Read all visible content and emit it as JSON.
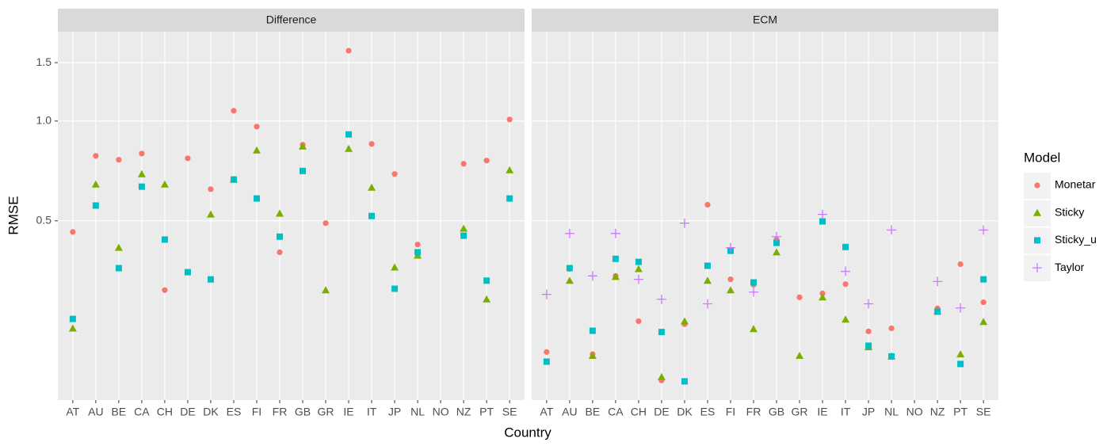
{
  "chart_data": [
    {
      "type": "scatter",
      "title": "Difference",
      "xlabel": "Country",
      "ylabel": "RMSE",
      "legend_title": "Model",
      "legend": "right",
      "log": true,
      "grid": true,
      "categories": [
        "AT",
        "AU",
        "BE",
        "CA",
        "CH",
        "DE",
        "DK",
        "ES",
        "FI",
        "FR",
        "GB",
        "GR",
        "IE",
        "IT",
        "JP",
        "NL",
        "NO",
        "NZ",
        "PT",
        "SE"
      ],
      "ylim": [
        0.144,
        1.86
      ],
      "yticks": [
        0.5,
        {
          "value": 1,
          "label": "1.0"
        },
        1.5
      ],
      "series": [
        {
          "name": "Monetar",
          "color": "#F8766D",
          "shape": "circle",
          "values": [
            0.463,
            0.785,
            0.764,
            0.798,
            0.309,
            0.772,
            0.623,
            1.074,
            0.962,
            0.402,
            0.848,
            0.492,
            1.63,
            0.853,
            0.692,
            0.424,
            null,
            0.743,
            0.76,
            1.011
          ]
        },
        {
          "name": "Sticky",
          "color": "#7CAE00",
          "shape": "triangle",
          "values": [
            0.237,
            0.644,
            0.415,
            0.692,
            0.644,
            null,
            0.523,
            0.666,
            0.816,
            0.526,
            0.839,
            0.309,
            0.825,
            0.63,
            0.362,
            0.393,
            null,
            0.474,
            0.29,
            0.711
          ]
        },
        {
          "name": "Sticky_u",
          "color": "#00BFC4",
          "shape": "square",
          "values": [
            0.253,
            0.556,
            0.36,
            0.634,
            0.439,
            0.35,
            0.333,
            0.666,
            0.584,
            0.448,
            0.707,
            null,
            0.911,
            0.517,
            0.312,
            0.402,
            null,
            0.451,
            0.33,
            0.584
          ]
        }
      ]
    },
    {
      "type": "scatter",
      "title": "ECM",
      "log": true,
      "grid": true,
      "categories": [
        "AT",
        "AU",
        "BE",
        "CA",
        "CH",
        "DE",
        "DK",
        "ES",
        "FI",
        "FR",
        "GB",
        "GR",
        "IE",
        "IT",
        "JP",
        "NL",
        "NO",
        "NZ",
        "PT",
        "SE"
      ],
      "ylim": [
        0.144,
        1.86
      ],
      "yticks": [
        0.5,
        {
          "value": 1,
          "label": "1.0"
        },
        1.5
      ],
      "series": [
        {
          "name": "Monetar",
          "color": "#F8766D",
          "shape": "circle",
          "values": [
            0.201,
            0.358,
            0.198,
            0.341,
            0.249,
            0.165,
            0.244,
            0.559,
            0.333,
            0.321,
            0.439,
            0.294,
            0.302,
            0.322,
            0.232,
            0.237,
            null,
            0.272,
            0.37,
            0.284
          ]
        },
        {
          "name": "Sticky",
          "color": "#7CAE00",
          "shape": "triangle",
          "values": [
            null,
            0.33,
            0.196,
            0.339,
            0.358,
            0.169,
            0.249,
            0.33,
            0.309,
            0.236,
            0.402,
            0.196,
            0.294,
            0.252,
            0.208,
            0.195,
            null,
            0.267,
            0.198,
            0.248
          ]
        },
        {
          "name": "Sticky_u",
          "color": "#00BFC4",
          "shape": "square",
          "values": [
            0.188,
            0.36,
            0.233,
            0.384,
            0.376,
            0.231,
            0.164,
            0.366,
            0.406,
            0.326,
            0.429,
            null,
            0.498,
            0.417,
            0.21,
            0.195,
            null,
            0.266,
            0.185,
            0.333
          ]
        },
        {
          "name": "Taylor",
          "color": "#C77CFF",
          "shape": "plus",
          "values": [
            0.3,
            0.458,
            0.341,
            0.458,
            0.333,
            0.29,
            0.492,
            0.281,
            0.415,
            0.305,
            0.448,
            null,
            0.523,
            0.352,
            0.281,
            0.469,
            null,
            0.328,
            0.273,
            0.469
          ]
        }
      ]
    }
  ]
}
